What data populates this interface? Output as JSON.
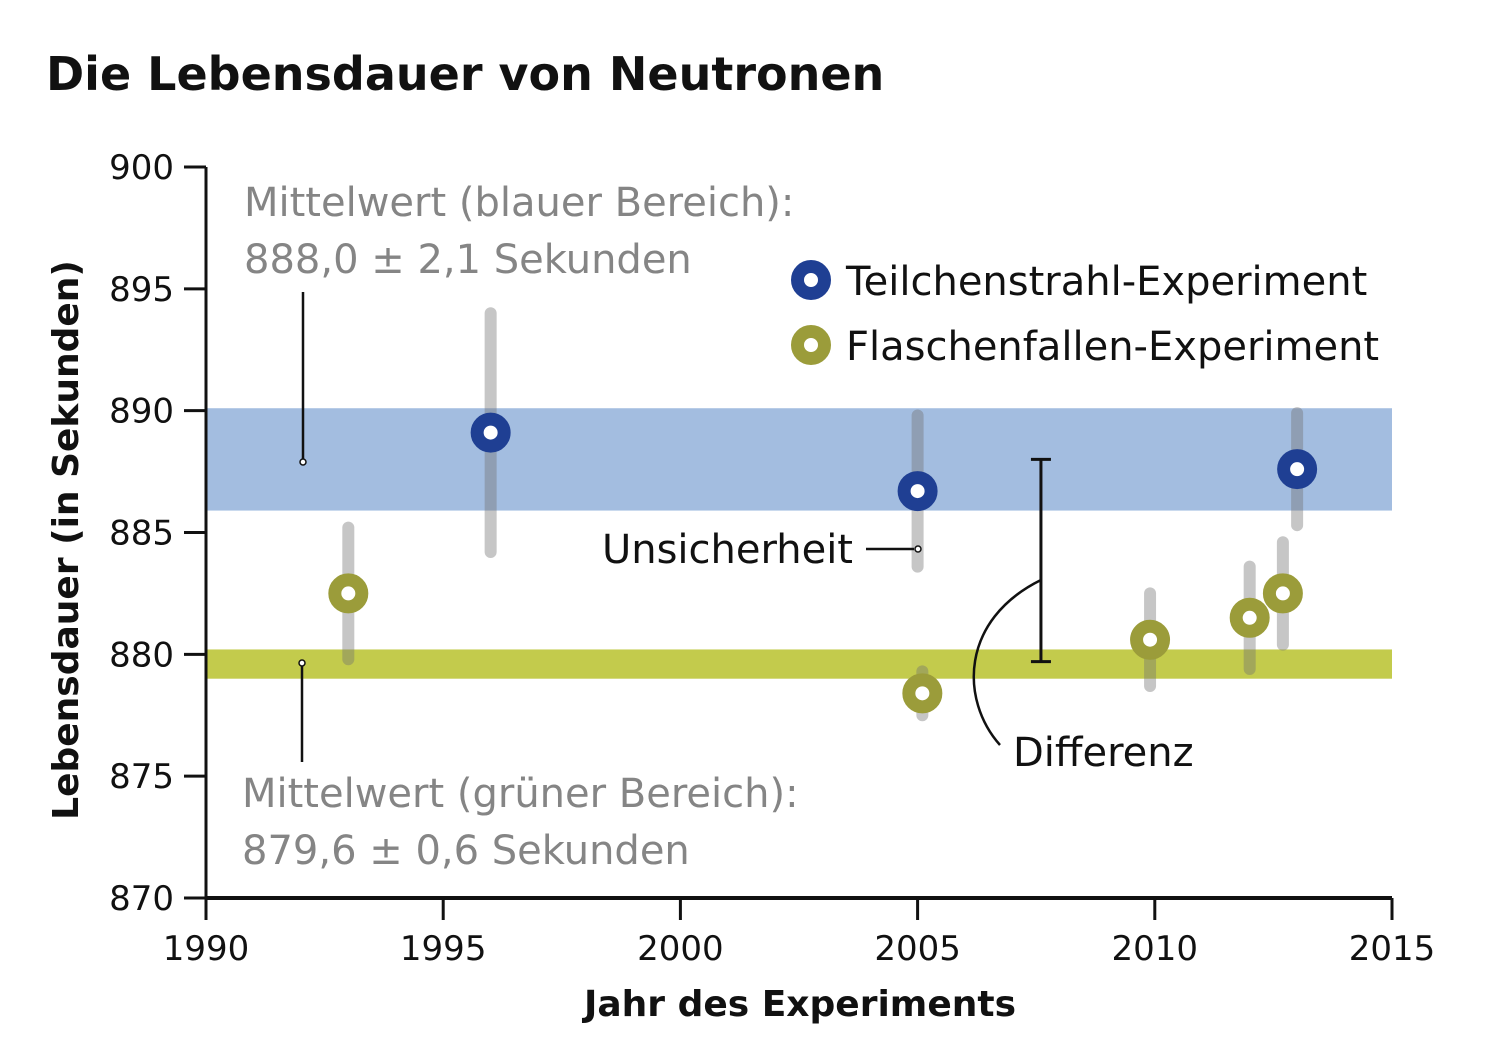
{
  "chart_data": {
    "type": "scatter",
    "title": "Die Lebensdauer von Neutronen",
    "xlabel": "Jahr des Experiments",
    "ylabel": "Lebensdauer (in Sekunden)",
    "xlim": [
      1990,
      2015
    ],
    "ylim": [
      870,
      900
    ],
    "xticks": [
      "1990",
      "1995",
      "2000",
      "2005",
      "2010",
      "2015"
    ],
    "yticks": [
      "870",
      "875",
      "880",
      "885",
      "890",
      "895",
      "900"
    ],
    "grid": false,
    "legend_position": "top-right",
    "series": [
      {
        "name": "Teilchenstrahl-Experiment",
        "color": "#1f3f93",
        "points": [
          {
            "x": 1996.0,
            "y": 889.1,
            "err": 4.9
          },
          {
            "x": 2005.0,
            "y": 886.7,
            "err": 3.1
          },
          {
            "x": 2013.0,
            "y": 887.6,
            "err": 2.3
          }
        ]
      },
      {
        "name": "Flaschenfallen-Experiment",
        "color": "#9b9c3a",
        "points": [
          {
            "x": 1993.0,
            "y": 882.5,
            "err": 2.7
          },
          {
            "x": 2005.1,
            "y": 878.4,
            "err": 0.9
          },
          {
            "x": 2009.9,
            "y": 880.6,
            "err": 1.9
          },
          {
            "x": 2012.0,
            "y": 881.5,
            "err": 2.1
          },
          {
            "x": 2012.7,
            "y": 882.5,
            "err": 2.1
          }
        ]
      }
    ],
    "bands": [
      {
        "name": "blauer Bereich",
        "mean": 888.0,
        "err": 2.1,
        "color": "#a3bde0",
        "label_line1": "Mittelwert (blauer Bereich):",
        "label_line2": "888,0 ± 2,1 Sekunden"
      },
      {
        "name": "grüner Bereich",
        "mean": 879.6,
        "err": 0.6,
        "color": "#c3cb4c",
        "label_line1": "Mittelwert (grüner Bereich):",
        "label_line2": "879,6 ± 0,6 Sekunden"
      }
    ],
    "annotations": {
      "uncertainty": "Unsicherheit",
      "difference": "Differenz",
      "difference_x": 2007.6,
      "difference_range": [
        879.7,
        888.0
      ]
    }
  }
}
